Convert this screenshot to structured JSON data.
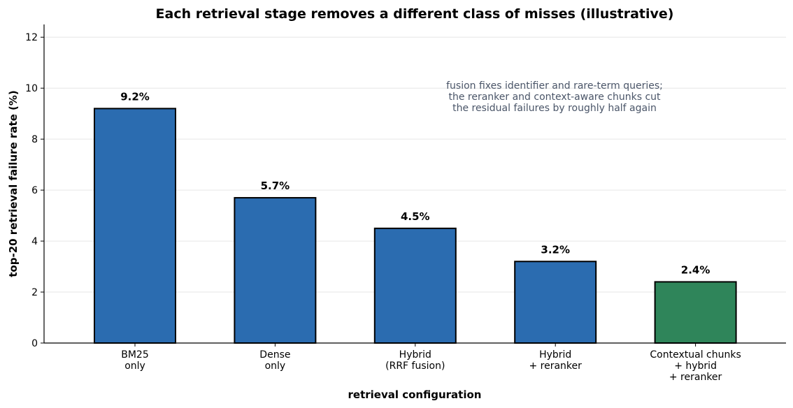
{
  "chart_data": {
    "type": "bar",
    "title": "Each retrieval stage removes a different class of misses (illustrative)",
    "xlabel": "retrieval configuration",
    "ylabel": "top-20 retrieval failure rate (%)",
    "ylim": [
      0,
      12.5
    ],
    "yticks": [
      0,
      2,
      4,
      6,
      8,
      10,
      12
    ],
    "grid": "horizontal",
    "categories": [
      [
        "BM25",
        "only"
      ],
      [
        "Dense",
        "only"
      ],
      [
        "Hybrid",
        "(RRF fusion)"
      ],
      [
        "Hybrid",
        "+ reranker"
      ],
      [
        "Contextual chunks",
        "+ hybrid",
        "+ reranker"
      ]
    ],
    "values": [
      9.2,
      5.7,
      4.5,
      3.2,
      2.4
    ],
    "value_labels": [
      "9.2%",
      "5.7%",
      "4.5%",
      "3.2%",
      "2.4%"
    ],
    "bar_colors": [
      "#2b6cb0",
      "#2b6cb0",
      "#2b6cb0",
      "#2b6cb0",
      "#2f855a"
    ],
    "annotation": [
      "fusion fixes identifier and rare-term queries;",
      "the reranker and context-aware chunks cut",
      "the residual failures by roughly half again"
    ]
  },
  "colors": {
    "bar_default": "#2b6cb0",
    "bar_highlight": "#2f855a",
    "annotation_text": "#4a5568",
    "grid": "#e6e6e6"
  }
}
